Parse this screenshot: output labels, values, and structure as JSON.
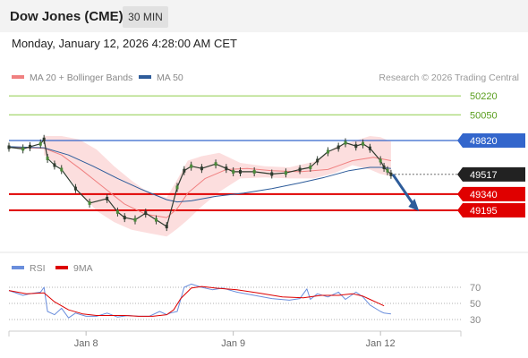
{
  "header": {
    "title": "Dow Jones (CME)",
    "timeframe": "30 MIN",
    "datetime": "Monday, January 12, 2026 4:28:00 AM CET"
  },
  "legend": {
    "ma20_label": "MA 20 + Bollinger Bands",
    "ma20_color": "#f08080",
    "ma50_label": "MA 50",
    "ma50_color": "#2e5c9a",
    "credit": "Research © 2026 Trading Central"
  },
  "rsi_legend": {
    "rsi_label": "RSI",
    "rsi_color": "#6a8edc",
    "ma9_label": "9MA",
    "ma9_color": "#dd0000"
  },
  "chart_data": [
    {
      "type": "line",
      "title": "Dow Jones (CME)",
      "ylim": [
        48950,
        50300
      ],
      "xlim": [
        0,
        240
      ],
      "x_ticks": [
        {
          "x": 44,
          "label": "Jan 8"
        },
        {
          "x": 128,
          "label": "Jan 9"
        },
        {
          "x": 212,
          "label": "Jan 12"
        }
      ],
      "levels": [
        {
          "value": 50220,
          "label": "50220",
          "kind": "target",
          "color": "#8fce4a"
        },
        {
          "value": 50050,
          "label": "50050",
          "kind": "target",
          "color": "#8fce4a"
        },
        {
          "value": 49820,
          "label": "49820",
          "kind": "pivot",
          "color": "#3366cc"
        },
        {
          "value": 49517,
          "label": "49517",
          "kind": "last",
          "color": "#222222"
        },
        {
          "value": 49340,
          "label": "49340",
          "kind": "support",
          "color": "#e00000"
        },
        {
          "value": 49195,
          "label": "49195",
          "kind": "support",
          "color": "#e00000"
        }
      ],
      "series": [
        {
          "name": "Price",
          "x": [
            0,
            8,
            12,
            18,
            20,
            22,
            26,
            30,
            38,
            46,
            56,
            62,
            66,
            72,
            78,
            84,
            90,
            96,
            100,
            104,
            110,
            118,
            124,
            128,
            132,
            140,
            150,
            158,
            166,
            172,
            176,
            182,
            188,
            192,
            198,
            202,
            206,
            212,
            214,
            216,
            218
          ],
          "y": [
            49760,
            49745,
            49765,
            49790,
            49830,
            49660,
            49600,
            49560,
            49390,
            49260,
            49300,
            49180,
            49130,
            49110,
            49170,
            49110,
            49050,
            49400,
            49550,
            49590,
            49570,
            49610,
            49570,
            49540,
            49540,
            49540,
            49520,
            49530,
            49560,
            49580,
            49640,
            49720,
            49760,
            49800,
            49770,
            49790,
            49750,
            49640,
            49580,
            49550,
            49517
          ]
        },
        {
          "name": "MA 20",
          "x": [
            0,
            20,
            30,
            42,
            54,
            66,
            78,
            90,
            96,
            102,
            112,
            124,
            136,
            150,
            166,
            182,
            196,
            208,
            218
          ],
          "y": [
            49760,
            49750,
            49690,
            49550,
            49400,
            49250,
            49160,
            49130,
            49210,
            49350,
            49480,
            49560,
            49570,
            49550,
            49540,
            49560,
            49640,
            49670,
            49640
          ]
        },
        {
          "name": "MA 50",
          "x": [
            0,
            20,
            34,
            48,
            62,
            76,
            90,
            96,
            104,
            118,
            134,
            150,
            166,
            180,
            194,
            206,
            212,
            218
          ],
          "y": [
            49765,
            49755,
            49690,
            49590,
            49480,
            49380,
            49290,
            49270,
            49280,
            49320,
            49350,
            49390,
            49440,
            49490,
            49550,
            49580,
            49580,
            49570
          ]
        },
        {
          "name": "Bollinger Upper",
          "x": [
            20,
            30,
            40,
            50,
            60,
            70,
            80,
            90,
            96,
            102,
            110,
            120,
            132,
            146,
            160,
            174,
            186,
            196,
            206,
            212,
            218
          ],
          "y": [
            49860,
            49860,
            49830,
            49740,
            49590,
            49460,
            49350,
            49310,
            49470,
            49640,
            49680,
            49710,
            49620,
            49590,
            49580,
            49630,
            49760,
            49810,
            49860,
            49850,
            49810
          ]
        },
        {
          "name": "Bollinger Lower",
          "x": [
            20,
            30,
            40,
            50,
            60,
            70,
            80,
            90,
            96,
            102,
            110,
            120,
            132,
            146,
            160,
            174,
            186,
            196,
            206,
            212,
            218
          ],
          "y": [
            49690,
            49570,
            49370,
            49190,
            49090,
            49020,
            48990,
            48960,
            49030,
            49110,
            49230,
            49360,
            49480,
            49490,
            49480,
            49480,
            49530,
            49600,
            49560,
            49520,
            49500
          ]
        },
        {
          "name": "Projection",
          "x": [
            218,
            232
          ],
          "y": [
            49517,
            49195
          ]
        }
      ]
    },
    {
      "type": "line",
      "title": "RSI",
      "ylim": [
        20,
        80
      ],
      "xlim": [
        0,
        240
      ],
      "y_ticks": [
        70,
        50,
        30
      ],
      "series": [
        {
          "name": "RSI",
          "x": [
            0,
            8,
            12,
            18,
            20,
            22,
            26,
            30,
            34,
            38,
            44,
            50,
            56,
            62,
            68,
            74,
            80,
            86,
            90,
            92,
            96,
            100,
            104,
            110,
            116,
            122,
            130,
            140,
            150,
            160,
            166,
            170,
            172,
            176,
            182,
            188,
            192,
            198,
            202,
            206,
            212,
            214,
            218
          ],
          "y": [
            66,
            60,
            62,
            64,
            70,
            40,
            36,
            44,
            32,
            38,
            34,
            34,
            38,
            33,
            35,
            34,
            34,
            40,
            36,
            38,
            40,
            70,
            74,
            70,
            67,
            69,
            64,
            60,
            56,
            54,
            56,
            68,
            55,
            62,
            58,
            64,
            55,
            64,
            58,
            48,
            40,
            38,
            37
          ]
        },
        {
          "name": "9MA",
          "x": [
            0,
            10,
            20,
            26,
            34,
            42,
            50,
            58,
            66,
            74,
            82,
            90,
            94,
            98,
            104,
            110,
            118,
            130,
            142,
            156,
            168,
            178,
            188,
            196,
            202,
            206,
            210,
            214
          ],
          "y": [
            66,
            62,
            63,
            52,
            42,
            37,
            35,
            35,
            35,
            34,
            34,
            36,
            42,
            56,
            69,
            71,
            69,
            67,
            63,
            58,
            57,
            60,
            60,
            62,
            59,
            55,
            51,
            47
          ]
        }
      ]
    }
  ]
}
